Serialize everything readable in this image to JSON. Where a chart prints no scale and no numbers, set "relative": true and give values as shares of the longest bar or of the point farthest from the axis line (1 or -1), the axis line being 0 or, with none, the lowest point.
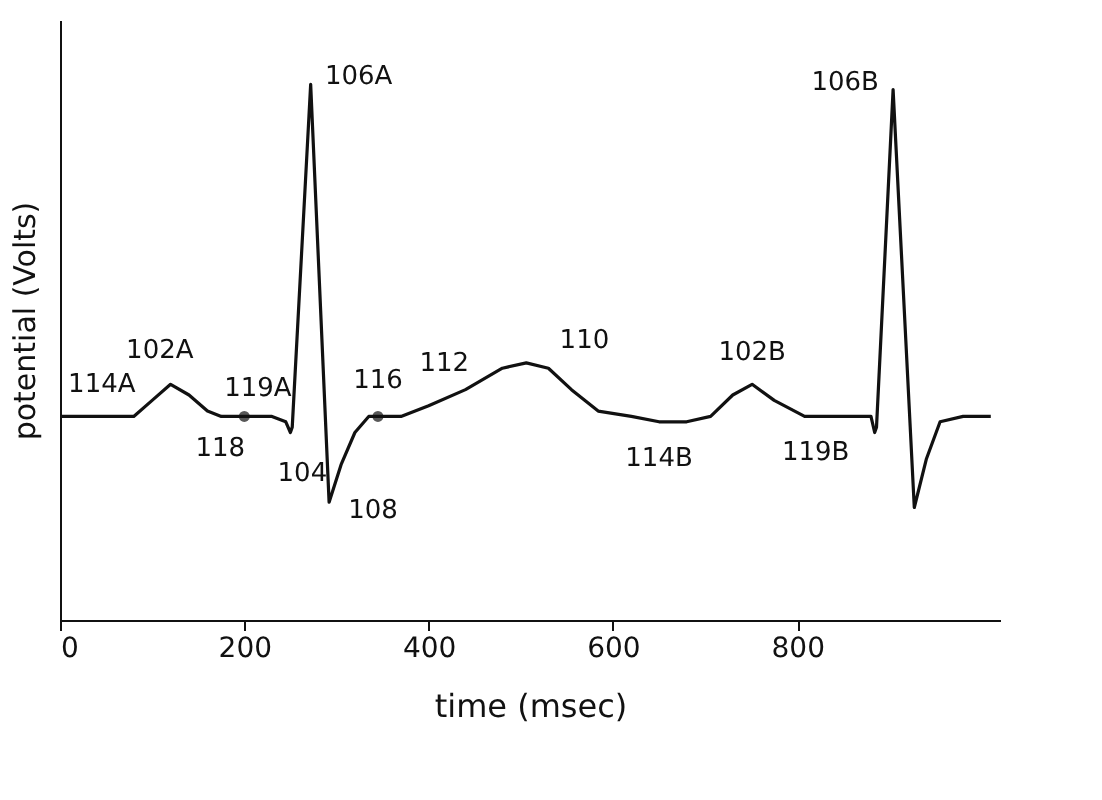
{
  "chart_data": {
    "type": "line",
    "xlabel": "time (msec)",
    "ylabel": "potential (Volts)",
    "relative": true,
    "xlim": [
      0,
      1020
    ],
    "xticks": [
      0,
      200,
      400,
      600,
      800
    ],
    "grid": false,
    "marker": "none",
    "line_style": "solid",
    "series": [
      {
        "type": "line",
        "color": "#111111",
        "x": [
          0,
          80,
          100,
          120,
          140,
          160,
          175,
          200,
          230,
          245,
          250,
          252,
          272,
          292,
          305,
          320,
          335,
          345,
          370,
          400,
          440,
          480,
          506,
          530,
          555,
          584,
          620,
          650,
          680,
          706,
          730,
          751,
          775,
          808,
          850,
          880,
          884,
          886,
          904,
          927,
          940,
          955,
          980,
          1010
        ],
        "values": [
          0.38,
          0.38,
          0.41,
          0.44,
          0.42,
          0.39,
          0.38,
          0.38,
          0.38,
          0.37,
          0.35,
          0.36,
          1,
          0.22,
          0.29,
          0.35,
          0.38,
          0.38,
          0.38,
          0.4,
          0.43,
          0.47,
          0.48,
          0.47,
          0.43,
          0.39,
          0.38,
          0.37,
          0.37,
          0.38,
          0.42,
          0.44,
          0.41,
          0.38,
          0.38,
          0.38,
          0.35,
          0.36,
          0.99,
          0.21,
          0.3,
          0.37,
          0.38,
          0.38
        ]
      },
      {
        "type": "scatter",
        "color": "#111111",
        "marker": "circle",
        "x": [
          200,
          345
        ],
        "values": [
          0.38,
          0.38
        ]
      }
    ],
    "annotations": [
      {
        "text": "114A",
        "x": 15,
        "y": 0.38
      },
      {
        "text": "102A",
        "x": 130,
        "y": 0.43
      },
      {
        "text": "119A",
        "x": 180,
        "y": 0.38
      },
      {
        "text": "118",
        "x": 200,
        "y": 0.38
      },
      {
        "text": "104",
        "x": 250,
        "y": 0.35
      },
      {
        "text": "106A",
        "x": 272,
        "y": 1
      },
      {
        "text": "108",
        "x": 292,
        "y": 0.22
      },
      {
        "text": "116",
        "x": 345,
        "y": 0.38
      },
      {
        "text": "112",
        "x": 430,
        "y": 0.42
      },
      {
        "text": "110",
        "x": 530,
        "y": 0.47
      },
      {
        "text": "114B",
        "x": 650,
        "y": 0.37
      },
      {
        "text": "102B",
        "x": 751,
        "y": 0.44
      },
      {
        "text": "119B",
        "x": 820,
        "y": 0.38
      },
      {
        "text": "106B",
        "x": 904,
        "y": 0.99
      }
    ]
  }
}
